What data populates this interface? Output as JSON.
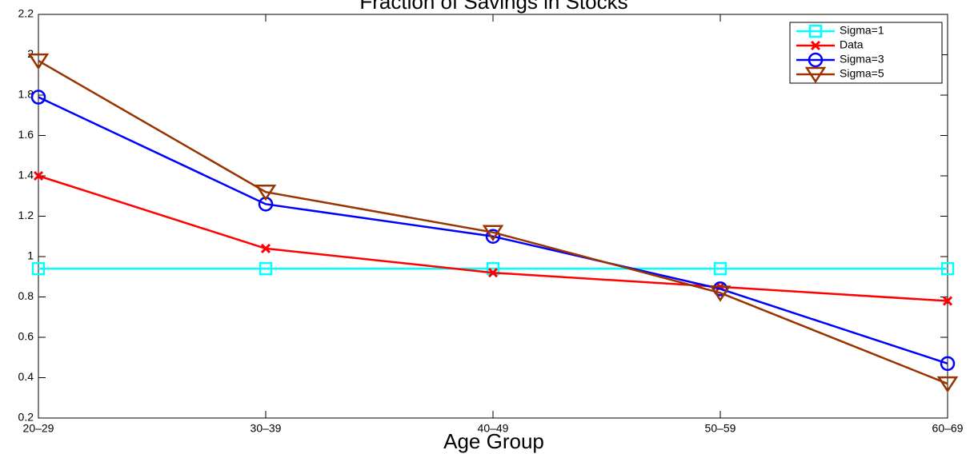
{
  "chart_data": {
    "type": "line",
    "title": "Fraction of Savings in Stocks",
    "x_label": "Age Group",
    "categories": [
      "20–29",
      "30–39",
      "40–49",
      "50–59",
      "60–69"
    ],
    "ylim": [
      0.2,
      2.2
    ],
    "yticks": [
      0.2,
      0.4,
      0.6,
      0.8,
      1,
      1.2,
      1.4,
      1.6,
      1.8,
      2,
      2.2
    ],
    "legend": "upper right",
    "series": [
      {
        "name": "Sigma=1",
        "color": "#00ffff",
        "marker": "square",
        "values": [
          0.94,
          0.94,
          0.94,
          0.94,
          0.94
        ]
      },
      {
        "name": "Data",
        "color": "#ff0000",
        "marker": "x",
        "values": [
          1.4,
          1.04,
          0.92,
          0.85,
          0.78
        ]
      },
      {
        "name": "Sigma=3",
        "color": "#0000ff",
        "marker": "circle",
        "values": [
          1.79,
          1.26,
          1.1,
          0.84,
          0.47
        ]
      },
      {
        "name": "Sigma=5",
        "color": "#993300",
        "marker": "triangle-down",
        "values": [
          1.97,
          1.32,
          1.12,
          0.82,
          0.37
        ]
      }
    ]
  }
}
